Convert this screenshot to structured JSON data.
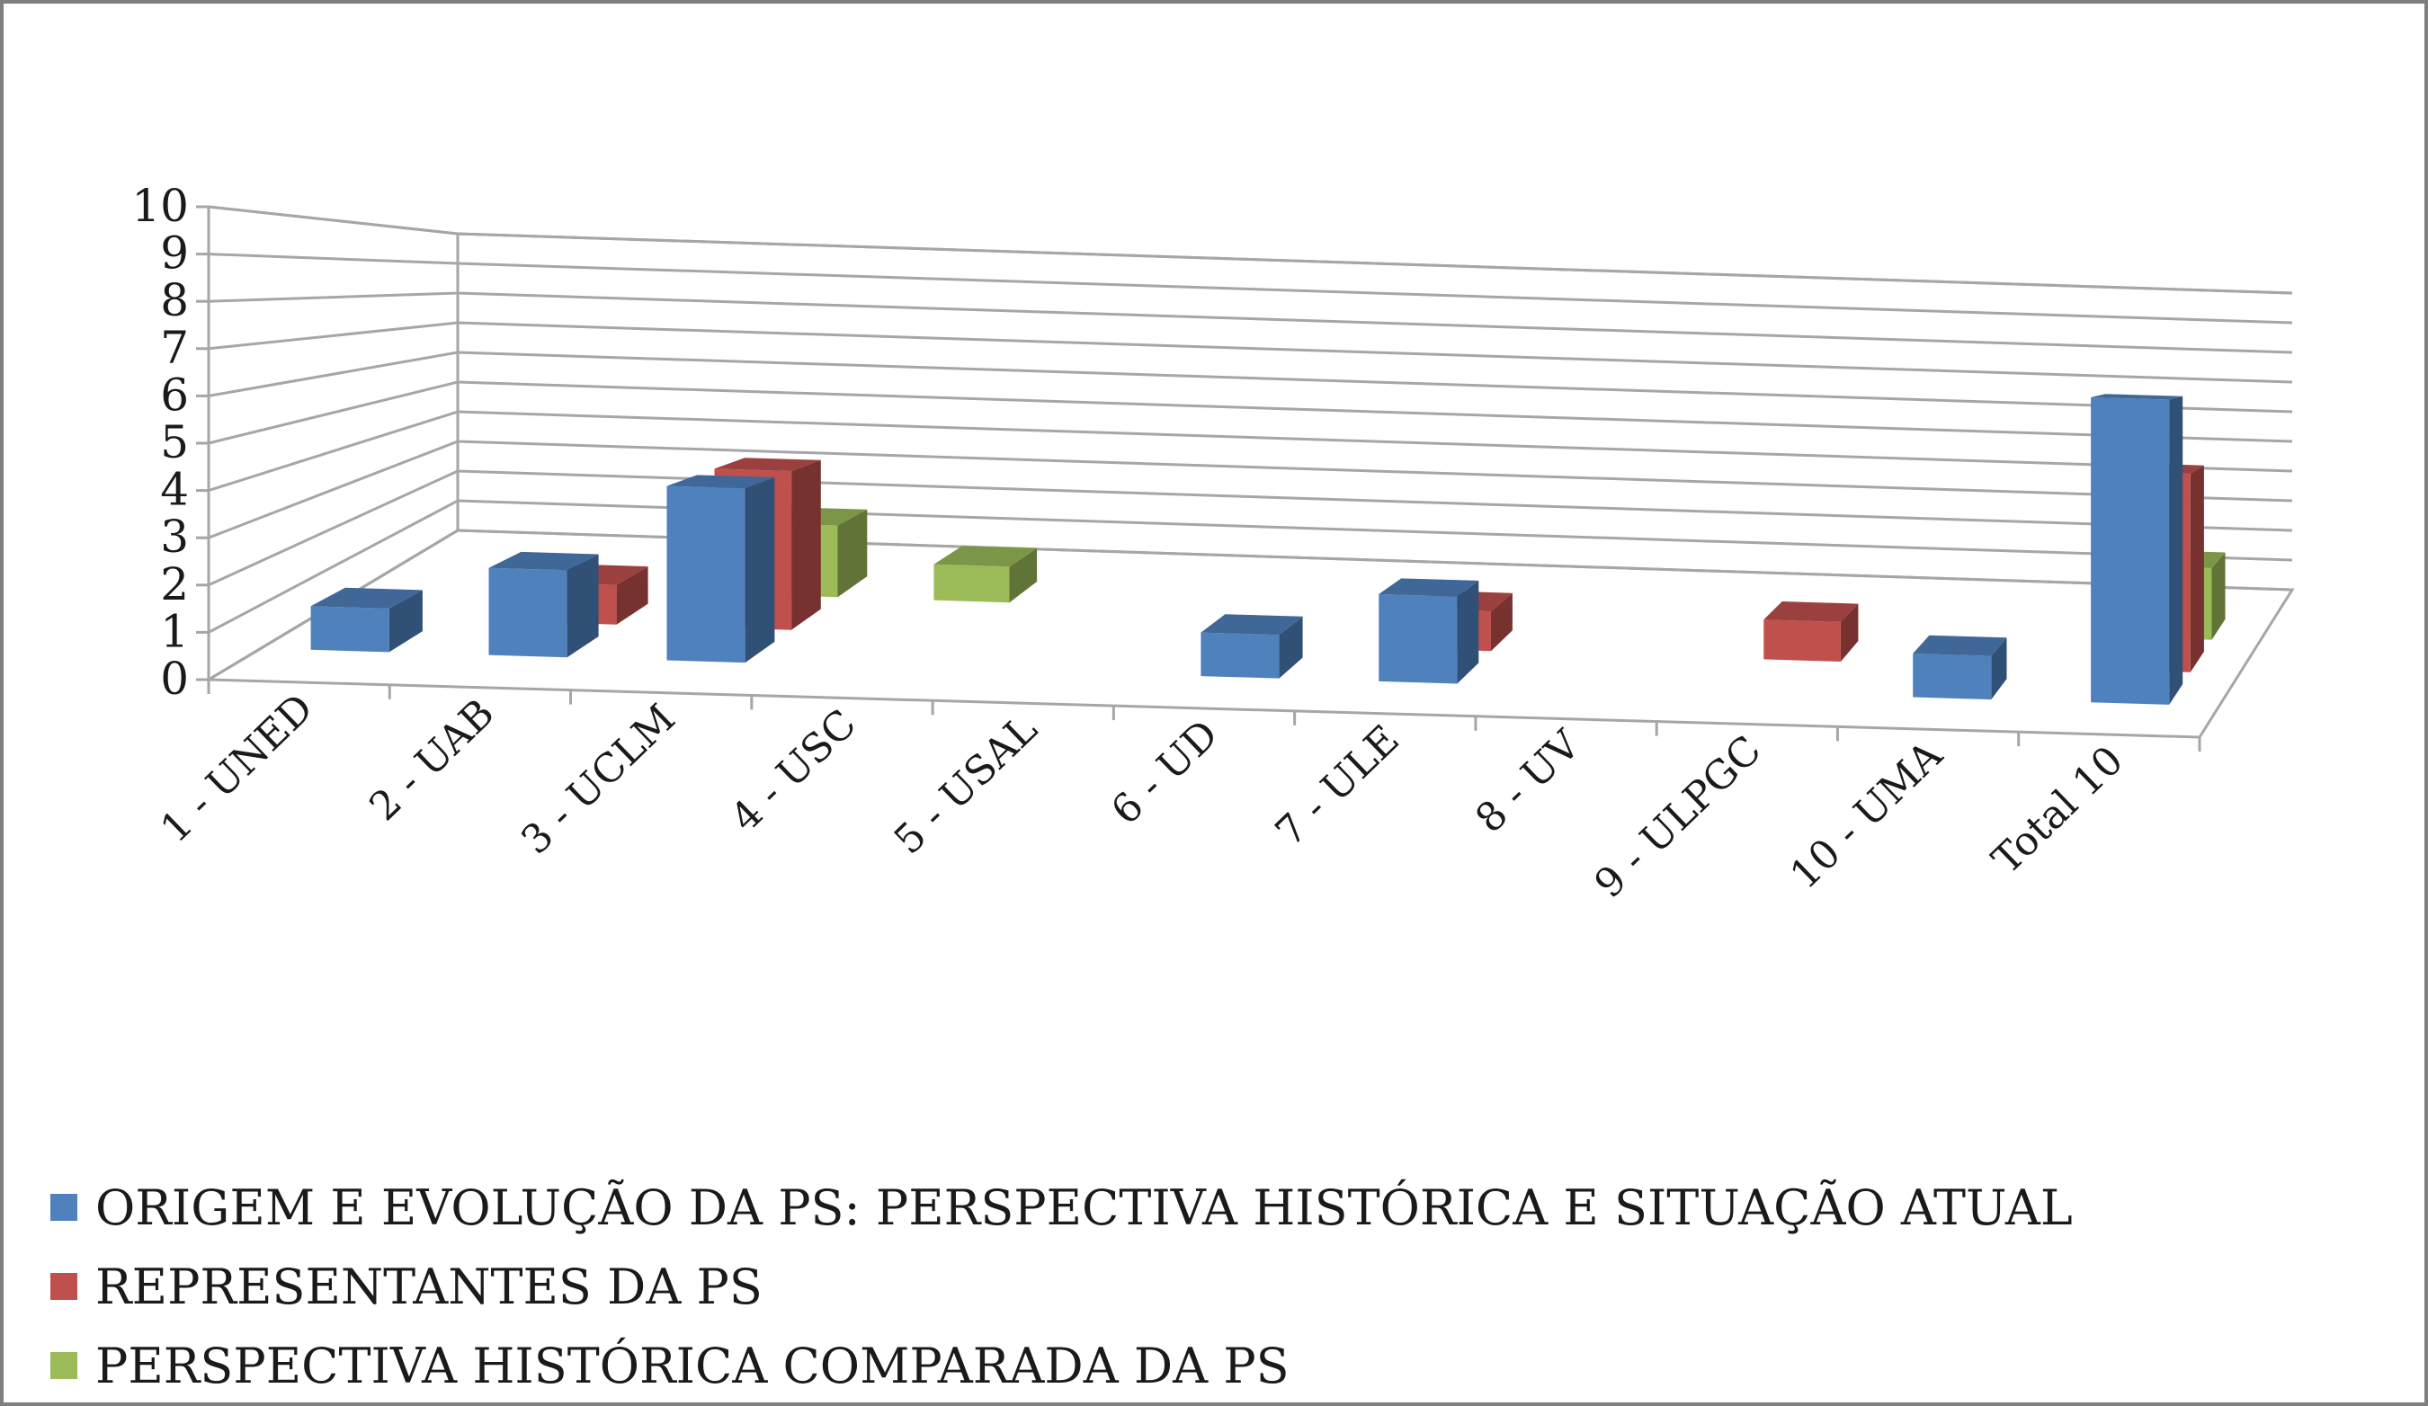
{
  "chart_data": {
    "type": "bar",
    "subtype": "3d-clustered-column",
    "categories": [
      "1 - UNED",
      "2 - UAB",
      "3 - UCLM",
      "4 - USC",
      "5 - USAL",
      "6 - UD",
      "7 - ULE",
      "8 - UV",
      "9 - ULPGC",
      "10 - UMA",
      "Total 10"
    ],
    "series": [
      {
        "name": "ORIGEM E EVOLUÇÃO DA PS: PERSPECTIVA HISTÓRICA E SITUAÇÃO ATUAL",
        "color": "#4f81bd",
        "values": [
          1,
          2,
          4,
          0,
          0,
          1,
          2,
          0,
          0,
          1,
          7
        ]
      },
      {
        "name": "REPRESENTANTES DA PS",
        "color": "#c0504d",
        "values": [
          0,
          1,
          4,
          0,
          0,
          0,
          1,
          0,
          1,
          0,
          5
        ]
      },
      {
        "name": "PERSPECTIVA HISTÓRICA COMPARADA DA PS",
        "color": "#9bbb59",
        "values": [
          0,
          0,
          2,
          1,
          0,
          0,
          0,
          0,
          0,
          0,
          2
        ]
      }
    ],
    "ylim": [
      0,
      10
    ],
    "yticks": [
      "0",
      "1",
      "2",
      "3",
      "4",
      "5",
      "6",
      "7",
      "8",
      "9",
      "10"
    ],
    "grid": true,
    "legend_position": "bottom",
    "title": "",
    "xlabel": "",
    "ylabel": ""
  }
}
